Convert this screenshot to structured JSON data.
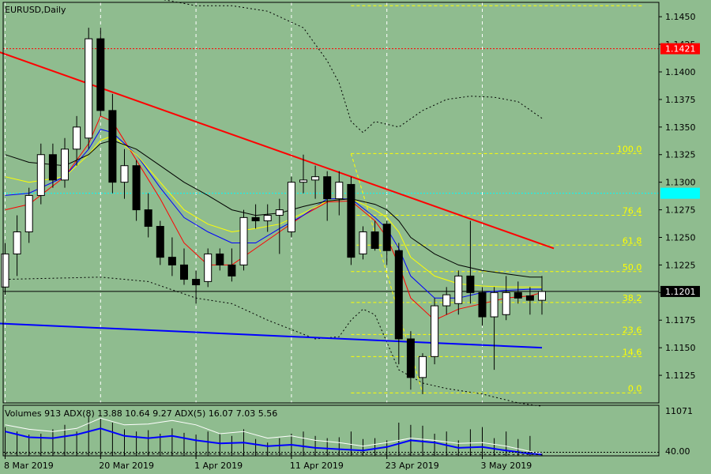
{
  "colors": {
    "background": "#8fbc8f",
    "bull_candle": "#ffffff",
    "bear_candle": "#000000",
    "grid": "#ffffff",
    "fib": "#ffff00",
    "resistance_line": "#ff0000",
    "support_line": "#0000ff",
    "price_line": "#000000",
    "ma_red": "#ff0000",
    "ma_blue": "#0000ff",
    "ma_yellow": "#ffff00",
    "ma_black": "#000000",
    "cyan_level": "#00ffff"
  },
  "chart_data": {
    "type": "candlestick",
    "title": "EURUSD,Daily",
    "ylim": [
      1.11,
      1.1463
    ],
    "y_ticks": [
      "1.1450",
      "1.1425",
      "1.1400",
      "1.1375",
      "1.1350",
      "1.1325",
      "1.1300",
      "1.1275",
      "1.1250",
      "1.1225",
      "1.1200",
      "1.1175",
      "1.1150",
      "1.1125"
    ],
    "x_labels": [
      {
        "label": "8 Mar 2019",
        "index": 0
      },
      {
        "label": "20 Mar 2019",
        "index": 8
      },
      {
        "label": "1 Apr 2019",
        "index": 16
      },
      {
        "label": "11 Apr 2019",
        "index": 24
      },
      {
        "label": "23 Apr 2019",
        "index": 32
      },
      {
        "label": "3 May 2019",
        "index": 40
      }
    ],
    "candles": [
      {
        "o": 1.1205,
        "h": 1.1245,
        "l": 1.1198,
        "c": 1.1235
      },
      {
        "o": 1.1235,
        "h": 1.127,
        "l": 1.1215,
        "c": 1.1255
      },
      {
        "o": 1.1255,
        "h": 1.1295,
        "l": 1.1245,
        "c": 1.1288
      },
      {
        "o": 1.1288,
        "h": 1.1335,
        "l": 1.128,
        "c": 1.1325
      },
      {
        "o": 1.1325,
        "h": 1.1335,
        "l": 1.1295,
        "c": 1.1302
      },
      {
        "o": 1.1302,
        "h": 1.134,
        "l": 1.1295,
        "c": 1.133
      },
      {
        "o": 1.133,
        "h": 1.136,
        "l": 1.1315,
        "c": 1.135
      },
      {
        "o": 1.134,
        "h": 1.144,
        "l": 1.133,
        "c": 1.143
      },
      {
        "o": 1.143,
        "h": 1.144,
        "l": 1.136,
        "c": 1.1365
      },
      {
        "o": 1.1365,
        "h": 1.138,
        "l": 1.129,
        "c": 1.13
      },
      {
        "o": 1.13,
        "h": 1.133,
        "l": 1.1285,
        "c": 1.1315
      },
      {
        "o": 1.1315,
        "h": 1.132,
        "l": 1.1265,
        "c": 1.1275
      },
      {
        "o": 1.1275,
        "h": 1.129,
        "l": 1.125,
        "c": 1.126
      },
      {
        "o": 1.126,
        "h": 1.1265,
        "l": 1.1225,
        "c": 1.1232
      },
      {
        "o": 1.1232,
        "h": 1.125,
        "l": 1.1215,
        "c": 1.1225
      },
      {
        "o": 1.1225,
        "h": 1.124,
        "l": 1.1207,
        "c": 1.1212
      },
      {
        "o": 1.1212,
        "h": 1.122,
        "l": 1.119,
        "c": 1.1207
      },
      {
        "o": 1.121,
        "h": 1.124,
        "l": 1.1205,
        "c": 1.1235
      },
      {
        "o": 1.1235,
        "h": 1.124,
        "l": 1.122,
        "c": 1.1225
      },
      {
        "o": 1.1225,
        "h": 1.124,
        "l": 1.121,
        "c": 1.1215
      },
      {
        "o": 1.1225,
        "h": 1.1275,
        "l": 1.122,
        "c": 1.1268
      },
      {
        "o": 1.1268,
        "h": 1.128,
        "l": 1.1258,
        "c": 1.1265
      },
      {
        "o": 1.1265,
        "h": 1.128,
        "l": 1.1255,
        "c": 1.127
      },
      {
        "o": 1.127,
        "h": 1.1285,
        "l": 1.1235,
        "c": 1.1275
      },
      {
        "o": 1.1255,
        "h": 1.1305,
        "l": 1.125,
        "c": 1.13
      },
      {
        "o": 1.13,
        "h": 1.1325,
        "l": 1.129,
        "c": 1.1302
      },
      {
        "o": 1.1302,
        "h": 1.1315,
        "l": 1.1285,
        "c": 1.1305
      },
      {
        "o": 1.1305,
        "h": 1.131,
        "l": 1.1265,
        "c": 1.1285
      },
      {
        "o": 1.1285,
        "h": 1.131,
        "l": 1.127,
        "c": 1.13
      },
      {
        "o": 1.1298,
        "h": 1.1305,
        "l": 1.1225,
        "c": 1.1232
      },
      {
        "o": 1.1235,
        "h": 1.126,
        "l": 1.123,
        "c": 1.1255
      },
      {
        "o": 1.1255,
        "h": 1.1265,
        "l": 1.1238,
        "c": 1.124
      },
      {
        "o": 1.1262,
        "h": 1.1265,
        "l": 1.1225,
        "c": 1.1238
      },
      {
        "o": 1.1238,
        "h": 1.1245,
        "l": 1.1135,
        "c": 1.1158
      },
      {
        "o": 1.1158,
        "h": 1.1165,
        "l": 1.1112,
        "c": 1.1123
      },
      {
        "o": 1.1123,
        "h": 1.1145,
        "l": 1.1108,
        "c": 1.1142
      },
      {
        "o": 1.1142,
        "h": 1.1195,
        "l": 1.1135,
        "c": 1.1188
      },
      {
        "o": 1.1188,
        "h": 1.1205,
        "l": 1.118,
        "c": 1.1198
      },
      {
        "o": 1.119,
        "h": 1.122,
        "l": 1.118,
        "c": 1.1215
      },
      {
        "o": 1.1215,
        "h": 1.1265,
        "l": 1.119,
        "c": 1.12
      },
      {
        "o": 1.12,
        "h": 1.1205,
        "l": 1.117,
        "c": 1.1178
      },
      {
        "o": 1.1178,
        "h": 1.1205,
        "l": 1.113,
        "c": 1.12
      },
      {
        "o": 1.118,
        "h": 1.1215,
        "l": 1.1175,
        "c": 1.12
      },
      {
        "o": 1.12,
        "h": 1.121,
        "l": 1.119,
        "c": 1.1195
      },
      {
        "o": 1.1197,
        "h": 1.1205,
        "l": 1.118,
        "c": 1.1193
      },
      {
        "o": 1.1193,
        "h": 1.1215,
        "l": 1.118,
        "c": 1.1201
      }
    ],
    "moving_averages": [
      {
        "color": "#ff0000",
        "points": [
          [
            0,
            1.1275
          ],
          [
            2,
            1.128
          ],
          [
            5,
            1.1305
          ],
          [
            7,
            1.1335
          ],
          [
            8,
            1.136
          ],
          [
            9,
            1.1355
          ],
          [
            11,
            1.132
          ],
          [
            13,
            1.1285
          ],
          [
            15,
            1.1245
          ],
          [
            17,
            1.1225
          ],
          [
            19,
            1.1225
          ],
          [
            21,
            1.124
          ],
          [
            23,
            1.1255
          ],
          [
            25,
            1.127
          ],
          [
            27,
            1.1282
          ],
          [
            29,
            1.1283
          ],
          [
            31,
            1.1265
          ],
          [
            32,
            1.125
          ],
          [
            33,
            1.1225
          ],
          [
            34,
            1.1195
          ],
          [
            36,
            1.1175
          ],
          [
            38,
            1.1185
          ],
          [
            40,
            1.119
          ],
          [
            42,
            1.1195
          ],
          [
            44,
            1.1197
          ],
          [
            45,
            1.12
          ]
        ]
      },
      {
        "color": "#0000ff",
        "points": [
          [
            0,
            1.1288
          ],
          [
            2,
            1.129
          ],
          [
            5,
            1.1305
          ],
          [
            7,
            1.133
          ],
          [
            8,
            1.1348
          ],
          [
            9,
            1.1345
          ],
          [
            11,
            1.1325
          ],
          [
            13,
            1.1295
          ],
          [
            15,
            1.1268
          ],
          [
            17,
            1.1255
          ],
          [
            19,
            1.1245
          ],
          [
            21,
            1.1245
          ],
          [
            23,
            1.1258
          ],
          [
            25,
            1.127
          ],
          [
            27,
            1.1285
          ],
          [
            29,
            1.1285
          ],
          [
            31,
            1.1268
          ],
          [
            32,
            1.1258
          ],
          [
            33,
            1.124
          ],
          [
            34,
            1.1215
          ],
          [
            36,
            1.1195
          ],
          [
            38,
            1.1195
          ],
          [
            40,
            1.12
          ],
          [
            42,
            1.1202
          ],
          [
            44,
            1.1203
          ],
          [
            45,
            1.1203
          ]
        ]
      },
      {
        "color": "#ffff00",
        "points": [
          [
            0,
            1.1305
          ],
          [
            2,
            1.13
          ],
          [
            5,
            1.1305
          ],
          [
            7,
            1.1325
          ],
          [
            8,
            1.1338
          ],
          [
            9,
            1.1342
          ],
          [
            11,
            1.1325
          ],
          [
            13,
            1.13
          ],
          [
            15,
            1.1275
          ],
          [
            17,
            1.1262
          ],
          [
            19,
            1.1255
          ],
          [
            21,
            1.1258
          ],
          [
            23,
            1.1262
          ],
          [
            25,
            1.1272
          ],
          [
            27,
            1.1283
          ],
          [
            29,
            1.1285
          ],
          [
            31,
            1.1275
          ],
          [
            32,
            1.1268
          ],
          [
            33,
            1.1255
          ],
          [
            34,
            1.1232
          ],
          [
            36,
            1.1215
          ],
          [
            38,
            1.1208
          ],
          [
            40,
            1.1206
          ],
          [
            42,
            1.1205
          ],
          [
            44,
            1.1205
          ],
          [
            45,
            1.1205
          ]
        ]
      },
      {
        "color": "#000000",
        "points": [
          [
            0,
            1.1325
          ],
          [
            2,
            1.1318
          ],
          [
            5,
            1.1315
          ],
          [
            7,
            1.1325
          ],
          [
            8,
            1.1335
          ],
          [
            9,
            1.1338
          ],
          [
            11,
            1.133
          ],
          [
            13,
            1.1315
          ],
          [
            15,
            1.13
          ],
          [
            17,
            1.1288
          ],
          [
            19,
            1.1275
          ],
          [
            21,
            1.127
          ],
          [
            23,
            1.1272
          ],
          [
            25,
            1.1278
          ],
          [
            27,
            1.1283
          ],
          [
            29,
            1.1285
          ],
          [
            31,
            1.128
          ],
          [
            32,
            1.1275
          ],
          [
            33,
            1.1265
          ],
          [
            34,
            1.125
          ],
          [
            36,
            1.1235
          ],
          [
            38,
            1.1225
          ],
          [
            40,
            1.122
          ],
          [
            42,
            1.1217
          ],
          [
            44,
            1.1214
          ],
          [
            45,
            1.1214
          ]
        ]
      }
    ],
    "bands": [
      {
        "points": [
          [
            -5,
            1.1493
          ],
          [
            1,
            1.148
          ],
          [
            4,
            1.1475
          ],
          [
            8,
            1.147
          ],
          [
            12,
            1.1468
          ],
          [
            16,
            1.146
          ],
          [
            19,
            1.146
          ],
          [
            22,
            1.1455
          ],
          [
            25,
            1.144
          ],
          [
            27,
            1.141
          ],
          [
            28,
            1.139
          ],
          [
            29,
            1.1355
          ],
          [
            30,
            1.1345
          ],
          [
            31,
            1.1355
          ],
          [
            33,
            1.135
          ],
          [
            35,
            1.1365
          ],
          [
            37,
            1.1375
          ],
          [
            39,
            1.1378
          ],
          [
            41,
            1.1377
          ],
          [
            43,
            1.1373
          ],
          [
            45,
            1.1358
          ]
        ]
      },
      {
        "points": [
          [
            0,
            1.1212
          ],
          [
            4,
            1.1213
          ],
          [
            8,
            1.1214
          ],
          [
            12,
            1.121
          ],
          [
            16,
            1.1195
          ],
          [
            19,
            1.119
          ],
          [
            22,
            1.1175
          ],
          [
            26,
            1.1158
          ],
          [
            28,
            1.116
          ],
          [
            29,
            1.1175
          ],
          [
            30,
            1.1185
          ],
          [
            31,
            1.118
          ],
          [
            33,
            1.113
          ],
          [
            35,
            1.1118
          ],
          [
            37,
            1.1113
          ],
          [
            40,
            1.1108
          ],
          [
            43,
            1.11
          ],
          [
            45,
            1.1097
          ]
        ]
      }
    ],
    "trendlines": [
      {
        "name": "resistance",
        "color": "#ff0000",
        "x0": -0.5,
        "y0": 1.1418,
        "x1": 46,
        "y1": 1.124
      },
      {
        "name": "support",
        "color": "#0000ff",
        "x0": -0.5,
        "y0": 1.1172,
        "x1": 45,
        "y1": 1.115
      }
    ],
    "fibonacci": {
      "x_start": 29,
      "x_end": 53.5,
      "levels": [
        {
          "label": "100.0",
          "price": 1.1326
        },
        {
          "label": "76.4",
          "price": 1.127
        },
        {
          "label": "61.8",
          "price": 1.1243
        },
        {
          "label": "50.0",
          "price": 1.1219
        },
        {
          "label": "38.2",
          "price": 1.1191
        },
        {
          "label": "23.6",
          "price": 1.1162
        },
        {
          "label": "14.6",
          "price": 1.1142
        },
        {
          "label": "0.0",
          "price": 1.1109
        }
      ]
    },
    "h_levels": [
      {
        "price": 1.1421,
        "label": "1.1421",
        "color": "#ff0000",
        "style": "dotted",
        "span": "full"
      },
      {
        "price": 1.129,
        "label": "",
        "color": "#00ffff",
        "style": "dotted",
        "span": "full"
      },
      {
        "price": 1.146,
        "label": "",
        "color": "#ffff00",
        "style": "dashed",
        "span": "fib"
      },
      {
        "price": 1.1201,
        "label": "1.1201",
        "color": "#000000",
        "style": "solid",
        "span": "full"
      }
    ],
    "volume_panel": {
      "header": "Volumes 913 ADX(8) 13.88 10.64 9.27 ADX(5) 16.07 7.03 5.56",
      "axis_labels": [
        {
          "text": "11071",
          "value": 11071
        },
        {
          "text": "40.00",
          "value": 40
        }
      ],
      "bars": [
        0.65,
        0.55,
        0.48,
        0.5,
        0.6,
        0.7,
        0.55,
        0.9,
        0.85,
        0.75,
        0.6,
        0.55,
        0.58,
        0.5,
        0.62,
        0.52,
        0.48,
        0.55,
        0.5,
        0.45,
        0.6,
        0.38,
        0.3,
        0.4,
        0.5,
        0.55,
        0.45,
        0.4,
        0.42,
        0.55,
        0.38,
        0.4,
        0.35,
        0.75,
        0.7,
        0.68,
        0.5,
        0.55,
        0.35,
        0.6,
        0.65,
        0.4,
        0.55,
        0.38,
        0.45,
        0.05
      ],
      "adx_white": [
        [
          0,
          0.7
        ],
        [
          2,
          0.6
        ],
        [
          4,
          0.55
        ],
        [
          6,
          0.62
        ],
        [
          8,
          0.85
        ],
        [
          10,
          0.7
        ],
        [
          12,
          0.72
        ],
        [
          14,
          0.8
        ],
        [
          16,
          0.7
        ],
        [
          18,
          0.5
        ],
        [
          20,
          0.55
        ],
        [
          22,
          0.4
        ],
        [
          24,
          0.45
        ],
        [
          26,
          0.35
        ],
        [
          28,
          0.3
        ],
        [
          30,
          0.22
        ],
        [
          32,
          0.3
        ],
        [
          34,
          0.4
        ],
        [
          36,
          0.35
        ],
        [
          38,
          0.28
        ],
        [
          40,
          0.3
        ],
        [
          42,
          0.22
        ],
        [
          44,
          0.1
        ],
        [
          45,
          0.05
        ]
      ],
      "adx_blue": [
        [
          0,
          0.55
        ],
        [
          2,
          0.42
        ],
        [
          4,
          0.4
        ],
        [
          6,
          0.48
        ],
        [
          8,
          0.62
        ],
        [
          10,
          0.45
        ],
        [
          12,
          0.4
        ],
        [
          14,
          0.45
        ],
        [
          16,
          0.35
        ],
        [
          18,
          0.28
        ],
        [
          20,
          0.3
        ],
        [
          22,
          0.22
        ],
        [
          24,
          0.25
        ],
        [
          26,
          0.18
        ],
        [
          28,
          0.15
        ],
        [
          30,
          0.12
        ],
        [
          32,
          0.2
        ],
        [
          34,
          0.35
        ],
        [
          36,
          0.3
        ],
        [
          38,
          0.18
        ],
        [
          40,
          0.2
        ],
        [
          42,
          0.12
        ],
        [
          44,
          0.05
        ],
        [
          45,
          0.03
        ]
      ],
      "adx_black": [
        [
          0,
          0.05
        ],
        [
          45,
          0.03
        ]
      ]
    }
  }
}
